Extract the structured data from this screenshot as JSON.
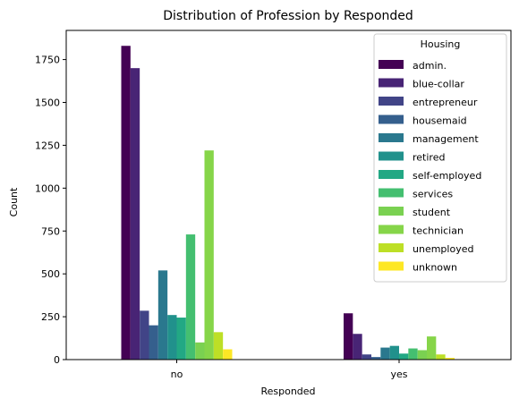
{
  "chart_data": {
    "type": "bar",
    "title": "Distribution of Profession by Responded",
    "xlabel": "Responded",
    "ylabel": "Count",
    "categories": [
      "no",
      "yes"
    ],
    "ylim": [
      0,
      1920
    ],
    "yticks": [
      0,
      250,
      500,
      750,
      1000,
      1250,
      1500,
      1750
    ],
    "legend_title": "Housing",
    "legend_position": "top-right",
    "grid": false,
    "series": [
      {
        "name": "admin.",
        "color": "#440154",
        "values": [
          1830,
          270
        ]
      },
      {
        "name": "blue-collar",
        "color": "#482475",
        "values": [
          1700,
          150
        ]
      },
      {
        "name": "entrepreneur",
        "color": "#414487",
        "values": [
          285,
          30
        ]
      },
      {
        "name": "housemaid",
        "color": "#355f8d",
        "values": [
          200,
          15
        ]
      },
      {
        "name": "management",
        "color": "#2a788e",
        "values": [
          520,
          70
        ]
      },
      {
        "name": "retired",
        "color": "#21918c",
        "values": [
          260,
          80
        ]
      },
      {
        "name": "self-employed",
        "color": "#22a884",
        "values": [
          245,
          35
        ]
      },
      {
        "name": "services",
        "color": "#44bf70",
        "values": [
          730,
          65
        ]
      },
      {
        "name": "student",
        "color": "#7ad151",
        "values": [
          100,
          55
        ]
      },
      {
        "name": "technician",
        "color": "#86d549",
        "values": [
          1220,
          135
        ]
      },
      {
        "name": "unemployed",
        "color": "#bddf26",
        "values": [
          160,
          30
        ]
      },
      {
        "name": "unknown",
        "color": "#fde725",
        "values": [
          60,
          10
        ]
      }
    ]
  }
}
